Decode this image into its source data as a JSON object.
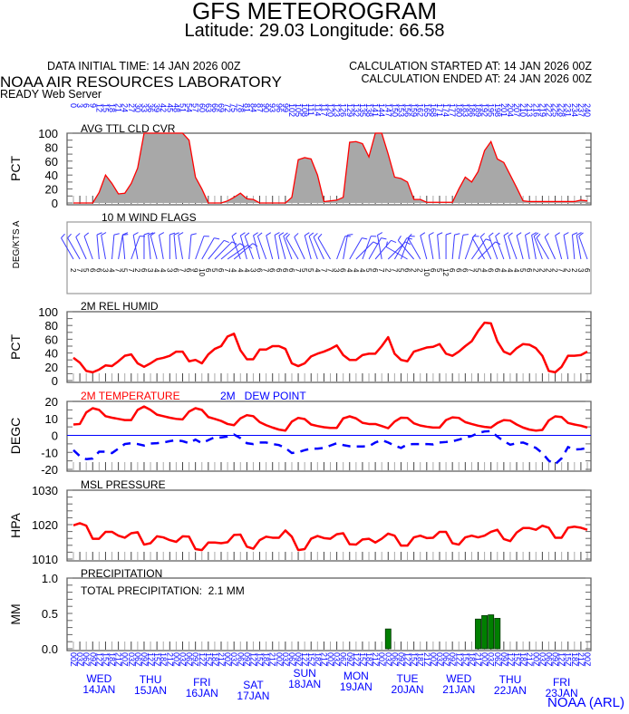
{
  "header": {
    "title": "GFS METEOROGRAM",
    "subtitle": "Latitude: 29.03 Longitude:  66.58",
    "data_initial_time": "DATA INITIAL TIME: 14 JAN 2026 00Z",
    "calc_started": "CALCULATION STARTED AT: 14 JAN 2026 00Z",
    "calc_ended": "CALCULATION ENDED AT: 24 JAN 2026 00Z",
    "org": "NOAA AIR RESOURCES LABORATORY",
    "server": "READY Web Server"
  },
  "footer": {
    "credit": "NOAA (ARL)"
  },
  "colors": {
    "axis_text": "#0000ff",
    "line": "#ff0000",
    "cloud_fill": "#a8a8a8",
    "precip": "#007f00",
    "dew": "#0000ff"
  },
  "axis": {
    "forecast_hours": [
      "0",
      "3",
      "6",
      "9",
      "12",
      "15",
      "18",
      "21",
      "24",
      "27",
      "30",
      "33",
      "36",
      "39",
      "42",
      "45",
      "48",
      "51",
      "54",
      "57",
      "60",
      "63",
      "66",
      "69",
      "72",
      "75",
      "78",
      "81",
      "84",
      "87",
      "90",
      "93",
      "96",
      "99",
      "102",
      "105",
      "108",
      "111",
      "114",
      "117",
      "120",
      "123",
      "126",
      "129",
      "132",
      "135",
      "138",
      "141",
      "144",
      "147",
      "150",
      "153",
      "156",
      "159",
      "162",
      "165",
      "168",
      "171",
      "174",
      "177",
      "180",
      "183",
      "186",
      "189",
      "192",
      "195",
      "198",
      "201",
      "204",
      "207",
      "210",
      "213",
      "216",
      "219",
      "222",
      "225",
      "228",
      "231",
      "234",
      "237",
      "240"
    ],
    "utc_hours": [
      "00Z",
      "03Z",
      "06Z",
      "09Z",
      "12Z",
      "15Z",
      "18Z",
      "21Z",
      "00Z",
      "03Z",
      "06Z",
      "09Z",
      "12Z",
      "15Z",
      "18Z",
      "21Z",
      "00Z",
      "03Z",
      "06Z",
      "09Z",
      "12Z",
      "15Z",
      "18Z",
      "21Z",
      "00Z",
      "03Z",
      "06Z",
      "09Z",
      "12Z",
      "15Z",
      "18Z",
      "21Z",
      "00Z",
      "03Z",
      "06Z",
      "09Z",
      "12Z",
      "15Z",
      "18Z",
      "21Z",
      "00Z",
      "03Z",
      "06Z",
      "09Z",
      "12Z",
      "15Z",
      "18Z",
      "21Z",
      "00Z",
      "03Z",
      "06Z",
      "09Z",
      "12Z",
      "15Z",
      "18Z",
      "21Z",
      "00Z",
      "03Z",
      "06Z",
      "09Z",
      "12Z",
      "15Z",
      "18Z",
      "21Z",
      "00Z",
      "03Z",
      "06Z",
      "09Z",
      "12Z",
      "15Z",
      "18Z",
      "21Z",
      "00Z",
      "03Z",
      "06Z",
      "09Z",
      "12Z",
      "15Z",
      "18Z",
      "21Z",
      "00Z"
    ],
    "days": [
      {
        "dow": "WED",
        "date": "14JAN"
      },
      {
        "dow": "THU",
        "date": "15JAN"
      },
      {
        "dow": "FRI",
        "date": "16JAN"
      },
      {
        "dow": "SAT",
        "date": "17JAN"
      },
      {
        "dow": "SUN",
        "date": "18JAN"
      },
      {
        "dow": "MON",
        "date": "19JAN"
      },
      {
        "dow": "TUE",
        "date": "20JAN"
      },
      {
        "dow": "WED",
        "date": "21JAN"
      },
      {
        "dow": "THU",
        "date": "22JAN"
      },
      {
        "dow": "FRI",
        "date": "23JAN"
      }
    ]
  },
  "chart_data": [
    {
      "type": "area",
      "title": "AVG TTL CLD CVR",
      "ylabel": "PCT",
      "ylim": [
        0,
        100
      ],
      "yticks": [
        "0",
        "20",
        "40",
        "60",
        "80",
        "100"
      ],
      "x_step_hours": 3,
      "values": [
        0,
        0,
        0,
        0,
        15,
        40,
        28,
        13,
        14,
        28,
        50,
        100,
        100,
        100,
        100,
        100,
        100,
        100,
        90,
        37,
        20,
        0,
        0,
        0,
        3,
        8,
        14,
        6,
        5,
        0,
        0,
        0,
        0,
        0,
        8,
        62,
        65,
        63,
        40,
        2,
        3,
        4,
        8,
        87,
        88,
        85,
        66,
        100,
        100,
        70,
        37,
        35,
        30,
        5,
        5,
        1,
        1,
        1,
        1,
        1,
        20,
        37,
        30,
        45,
        75,
        88,
        63,
        58,
        40,
        22,
        3,
        2,
        2,
        2,
        2,
        2,
        2,
        2,
        2,
        4,
        3
      ]
    },
    {
      "type": "wind-barbs",
      "title": "10 M  WIND FLAGS",
      "ylabel": "DEG/KTS A",
      "direction_deg": [
        330,
        330,
        335,
        340,
        355,
        350,
        5,
        10,
        355,
        20,
        350,
        0,
        355,
        345,
        350,
        0,
        355,
        350,
        5,
        20,
        30,
        40,
        45,
        50,
        55,
        50,
        340,
        345,
        340,
        345,
        340,
        345,
        350,
        345,
        340,
        330,
        335,
        345,
        340,
        335,
        330,
        20,
        10,
        30,
        45,
        20,
        30,
        40,
        350,
        45,
        30,
        20,
        300,
        320,
        330,
        345,
        350,
        355,
        0,
        5,
        10,
        20,
        35,
        45,
        330,
        335,
        340,
        340,
        345,
        340,
        345,
        350,
        350,
        340,
        330,
        335,
        345,
        350,
        355,
        350,
        340
      ],
      "speed_kts": [
        "2",
        "7",
        "5",
        "6",
        "6",
        "3",
        "4",
        "7",
        "5",
        "7",
        "2",
        "6",
        "3",
        "4",
        "4",
        "3",
        "6",
        "7",
        "6",
        "9",
        "10",
        "6",
        "5",
        "6",
        "7",
        "4",
        "4",
        "4",
        "3",
        "6",
        "7",
        "6",
        "6",
        "6",
        "6",
        "7",
        "5",
        "5",
        "4",
        "7",
        "7",
        "3",
        "6",
        "4",
        "4",
        "4",
        "5",
        "6",
        "7",
        "2",
        "7",
        "5",
        "6",
        "2",
        "2",
        "10",
        "6",
        "5",
        "12",
        "6",
        "6",
        "6",
        "7",
        "5",
        "4",
        "6",
        "6",
        "4",
        "4",
        "4",
        "5",
        "6",
        "2",
        "2",
        "2",
        "2",
        "7",
        "2",
        "2",
        "3",
        "6"
      ]
    },
    {
      "type": "line",
      "title": "2M REL HUMID",
      "ylabel": "PCT",
      "ylim": [
        0,
        100
      ],
      "yticks": [
        "0",
        "20",
        "40",
        "60",
        "80",
        "100"
      ],
      "values": [
        33,
        26,
        14,
        12,
        16,
        22,
        21,
        28,
        36,
        38,
        25,
        20,
        25,
        31,
        33,
        36,
        42,
        42,
        28,
        30,
        25,
        38,
        46,
        50,
        64,
        68,
        44,
        31,
        31,
        45,
        45,
        50,
        50,
        46,
        25,
        21,
        25,
        35,
        39,
        42,
        46,
        51,
        37,
        30,
        30,
        37,
        39,
        39,
        50,
        63,
        39,
        30,
        28,
        42,
        45,
        48,
        49,
        53,
        39,
        36,
        42,
        50,
        57,
        72,
        84,
        83,
        57,
        42,
        38,
        47,
        53,
        52,
        47,
        36,
        14,
        12,
        20,
        36,
        36,
        37,
        42
      ]
    },
    {
      "type": "line",
      "ylabel": "DEGC",
      "ylim": [
        -20,
        20
      ],
      "yticks": [
        "-20",
        "-10",
        "0",
        "10",
        "20"
      ],
      "series": [
        {
          "name": "2M TEMPERATURE",
          "color": "#ff0000",
          "values": [
            6.4,
            6.7,
            13.5,
            16,
            15,
            11.3,
            10.4,
            9.7,
            9,
            9,
            15,
            17,
            15,
            12.2,
            11.3,
            10.4,
            9.7,
            9.4,
            14,
            16,
            15,
            10.8,
            9.7,
            8.5,
            6.7,
            6,
            10,
            11.9,
            11.3,
            7.8,
            6,
            4.6,
            3.4,
            2.8,
            8.1,
            10.3,
            9.6,
            6.4,
            5.5,
            4.8,
            4.4,
            4.4,
            10,
            11.2,
            10,
            7.4,
            6.7,
            6.7,
            5.5,
            4.2,
            8.1,
            10.4,
            10.3,
            7.1,
            5.8,
            5.1,
            4.6,
            4.6,
            9,
            10.6,
            10.3,
            7.8,
            6.7,
            5.7,
            5,
            4.6,
            7.3,
            9,
            8.7,
            6.4,
            4.6,
            3.4,
            2.8,
            3.2,
            8.8,
            11.2,
            10.8,
            7.3,
            6.4,
            5.7,
            4.6
          ]
        },
        {
          "name": "2M   DEW POINT",
          "color": "#0000ff",
          "values": [
            -8.7,
            -12.2,
            -14,
            -13.6,
            -9.6,
            -9.6,
            -10.4,
            -7.8,
            -5.1,
            -4.6,
            -5.1,
            -6,
            -4.8,
            -4.6,
            -4.2,
            -3.4,
            -2.8,
            -3.4,
            -4.6,
            -2.5,
            -4.6,
            -2.8,
            -1.1,
            -1.2,
            -0.7,
            0.5,
            -1.6,
            -4.6,
            -5.1,
            -4.2,
            -4.2,
            -5.1,
            -5.7,
            -7.4,
            -10.4,
            -9.9,
            -8.7,
            -7.8,
            -7.8,
            -7.4,
            -6,
            -4.6,
            -5.7,
            -6.4,
            -6.5,
            -6.5,
            -6.4,
            -4.2,
            -2.8,
            -4.2,
            -6,
            -7.4,
            -5.3,
            -5.1,
            -5.1,
            -5.1,
            -5.3,
            -4.2,
            -3.9,
            -3.5,
            -2.5,
            -1.4,
            -0.4,
            1.4,
            2.3,
            2.5,
            -0.7,
            -3.4,
            -5.5,
            -4.6,
            -4.2,
            -5.7,
            -7.4,
            -10.4,
            -14.9,
            -17,
            -13.5,
            -6.9,
            -8.3,
            -8.1,
            -7.4
          ]
        }
      ]
    },
    {
      "type": "line",
      "title": "MSL PRESSURE",
      "ylabel": "HPA",
      "ylim": [
        1010,
        1030
      ],
      "yticks": [
        "1010",
        "1020",
        "1030"
      ],
      "values": [
        1019.8,
        1020.4,
        1019.7,
        1015.9,
        1015.9,
        1017.9,
        1017.9,
        1016.8,
        1016.2,
        1017.5,
        1017.8,
        1014.2,
        1014.6,
        1016.6,
        1016.3,
        1015.5,
        1015,
        1016.6,
        1016.5,
        1012.9,
        1012.6,
        1014.8,
        1014.8,
        1014.6,
        1014.9,
        1017,
        1017.1,
        1013.6,
        1013,
        1015.5,
        1016.5,
        1016.2,
        1016.2,
        1018.3,
        1016.5,
        1012.6,
        1012.9,
        1015.9,
        1016.7,
        1016.1,
        1015.9,
        1017.2,
        1017.5,
        1014.3,
        1014.2,
        1015.7,
        1015.9,
        1014.8,
        1015.9,
        1017.4,
        1016.8,
        1013.9,
        1013.9,
        1016.3,
        1016.8,
        1016.1,
        1016.2,
        1017.9,
        1017.9,
        1014.6,
        1014.2,
        1016.3,
        1016.8,
        1016.3,
        1016.8,
        1017.9,
        1018.5,
        1015.8,
        1015.2,
        1017.7,
        1019,
        1019,
        1018.5,
        1019.7,
        1019.1,
        1016.2,
        1016.2,
        1019.1,
        1019.4,
        1019.1,
        1018.5
      ]
    },
    {
      "type": "bar",
      "title": "PRECIPITATION",
      "ylabel": "MM",
      "ylim": [
        0,
        1
      ],
      "yticks": [
        "0.0",
        "0.5",
        "1.0"
      ],
      "total_label": "TOTAL PRECIPITATION:  2.1 MM",
      "bars": [
        {
          "index": 49,
          "value": 0.28
        },
        {
          "index": 63,
          "value": 0.42
        },
        {
          "index": 64,
          "value": 0.47
        },
        {
          "index": 65,
          "value": 0.48
        },
        {
          "index": 66,
          "value": 0.43
        }
      ]
    }
  ]
}
